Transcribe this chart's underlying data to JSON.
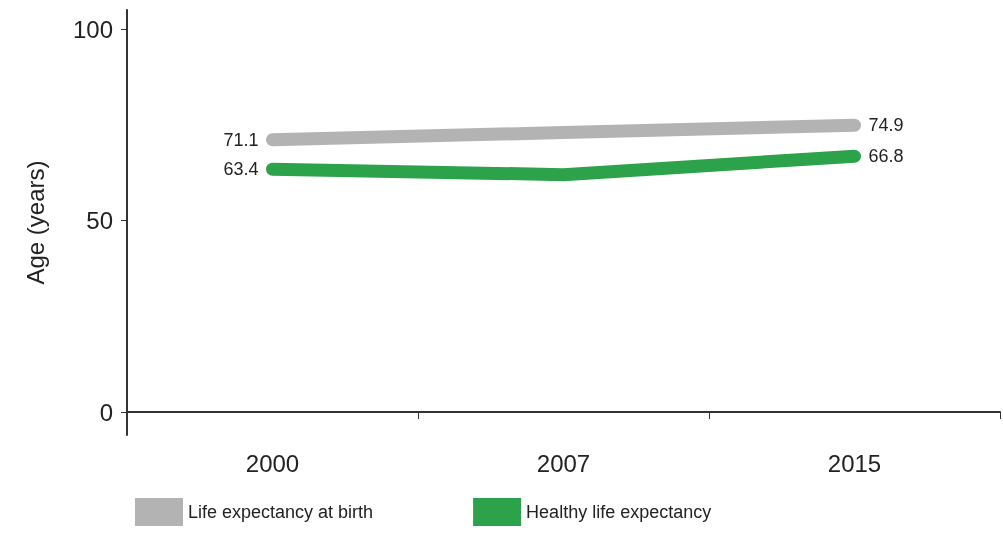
{
  "chart_data": {
    "type": "line",
    "ylabel": "Age (years)",
    "categories": [
      "2000",
      "2007",
      "2015"
    ],
    "series": [
      {
        "name": "Life expectancy at birth",
        "color": "#b3b3b3",
        "values": [
          71.1,
          73.0,
          74.9
        ],
        "value_labels": [
          "71.1",
          null,
          "74.9"
        ]
      },
      {
        "name": "Healthy life expectancy",
        "color": "#2ca24a",
        "values": [
          63.4,
          62.0,
          66.8
        ],
        "value_labels": [
          "63.4",
          null,
          "66.8"
        ]
      }
    ],
    "ylim": [
      -6,
      105
    ],
    "yticks": [
      0,
      50,
      100
    ],
    "grid": false,
    "legend": "bottom",
    "marker": "none",
    "line_style": "solid"
  }
}
